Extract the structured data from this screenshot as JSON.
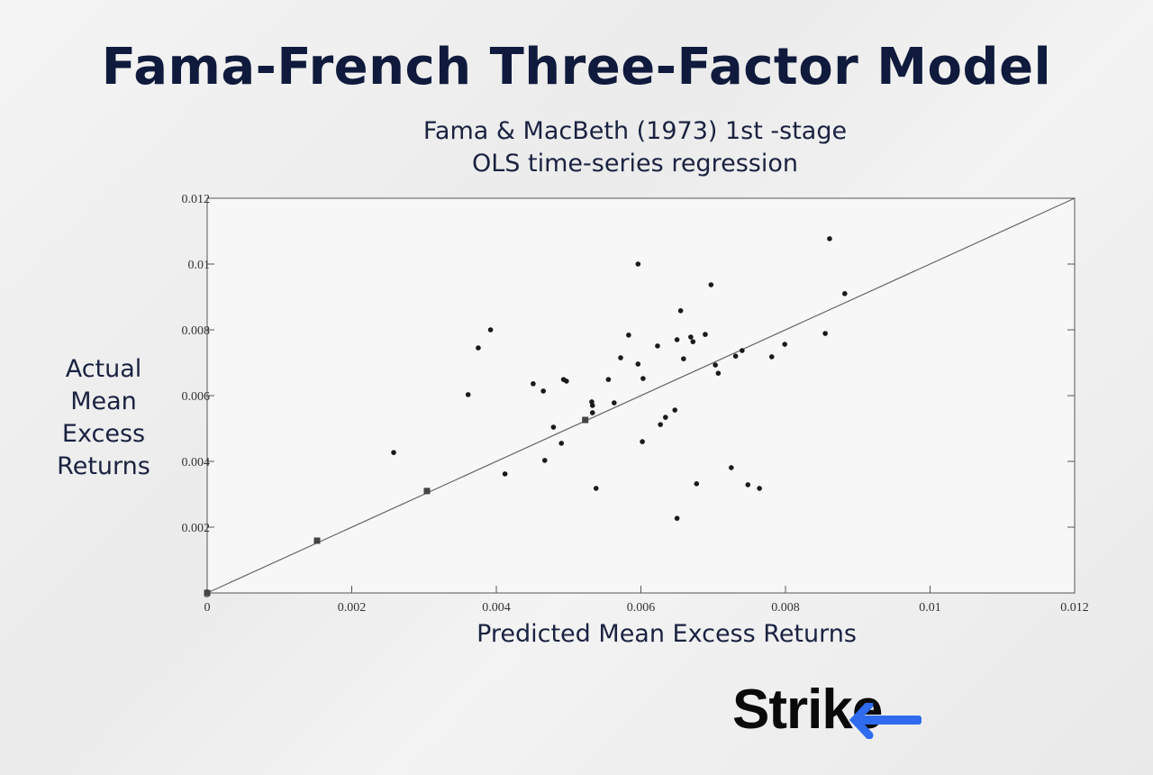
{
  "chart_data": {
    "type": "scatter",
    "title": "Fama-French Three-Factor Model",
    "subtitle": [
      "Fama & MacBeth (1973) 1st -stage",
      "OLS time-series regression"
    ],
    "xlabel": "Predicted Mean Excess Returns",
    "ylabel": "Actual Mean Excess Returns",
    "brand": "Strike",
    "xlim": [
      0,
      0.012
    ],
    "ylim": [
      0,
      0.012
    ],
    "xticks": [
      0,
      0.002,
      0.004,
      0.006,
      0.008,
      0.01,
      0.012
    ],
    "yticks": [
      0,
      0.002,
      0.004,
      0.006,
      0.008,
      0.01,
      0.012
    ],
    "fit_line": {
      "color": "#666666",
      "x": [
        0,
        0.012
      ],
      "y": [
        0,
        0.012
      ]
    },
    "series": [
      {
        "marker": "circle",
        "color": "#1a1a1a",
        "x": [
          0.00258,
          0.00361,
          0.00375,
          0.00392,
          0.00412,
          0.00451,
          0.00465,
          0.00467,
          0.00479,
          0.0049,
          0.00493,
          0.00497,
          0.00532,
          0.00533,
          0.00533,
          0.00538,
          0.00555,
          0.00563,
          0.00572,
          0.00583,
          0.00596,
          0.00596,
          0.00602,
          0.00603,
          0.00623,
          0.00627,
          0.00634,
          0.00647,
          0.0065,
          0.0065,
          0.00655,
          0.00659,
          0.00669,
          0.00672,
          0.00677,
          0.00689,
          0.00697,
          0.00703,
          0.00707,
          0.00725,
          0.00731,
          0.0074,
          0.00748,
          0.00764,
          0.00781,
          0.00799,
          0.00855,
          0.00861,
          0.00882
        ],
        "values": [
          0.00427,
          0.00603,
          0.00745,
          0.008,
          0.00362,
          0.00636,
          0.00614,
          0.00403,
          0.00504,
          0.00455,
          0.00649,
          0.00644,
          0.00581,
          0.0057,
          0.00548,
          0.00318,
          0.00649,
          0.00578,
          0.00715,
          0.00784,
          0.01,
          0.00696,
          0.0046,
          0.00652,
          0.00751,
          0.00512,
          0.00534,
          0.00556,
          0.0077,
          0.00227,
          0.00858,
          0.00712,
          0.00778,
          0.00764,
          0.00332,
          0.00786,
          0.00937,
          0.00693,
          0.00668,
          0.00381,
          0.0072,
          0.00737,
          0.00329,
          0.00318,
          0.00718,
          0.00756,
          0.00789,
          0.01077,
          0.0091
        ]
      },
      {
        "marker": "square",
        "color": "#444444",
        "x": [
          0,
          0.00152,
          0.00304,
          0.00523
        ],
        "values": [
          0,
          0.00159,
          0.0031,
          0.00526
        ]
      }
    ]
  }
}
